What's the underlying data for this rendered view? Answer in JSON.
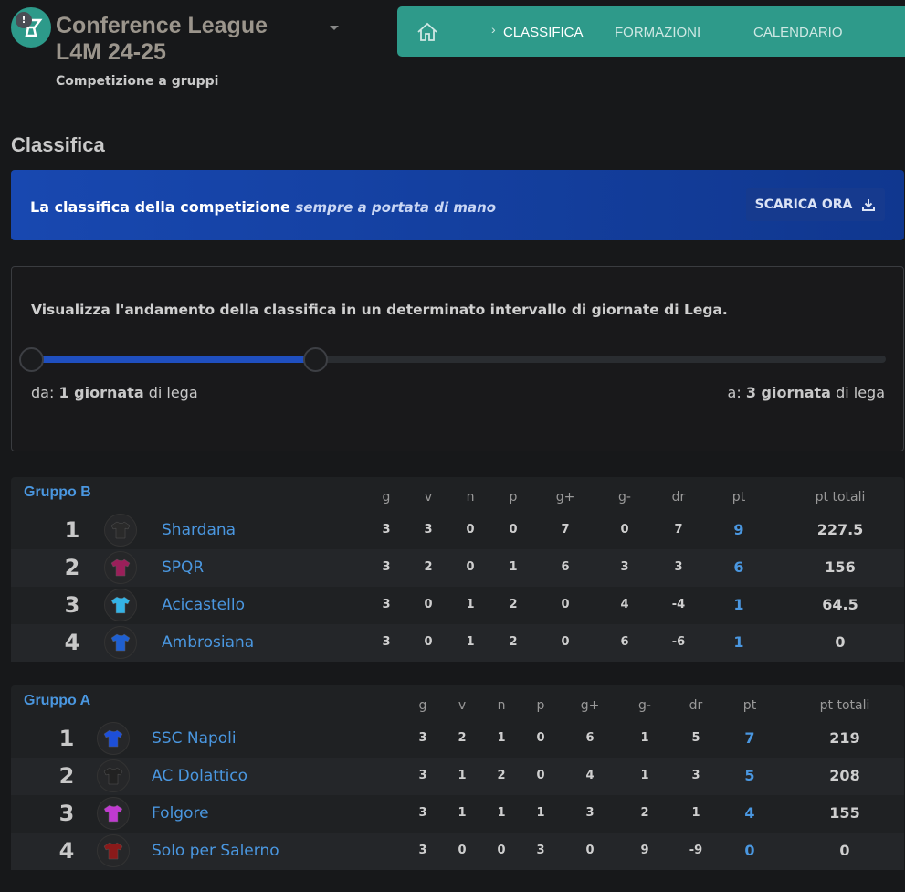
{
  "header": {
    "title_line1": "Conference League",
    "title_line2": "L4M 24-25",
    "subtitle": "Competizione a gruppi",
    "badge": "!",
    "logo_icon": "trophy-icon"
  },
  "nav": {
    "items": [
      "CLASSIFICA",
      "FORMAZIONI",
      "CALENDARIO"
    ],
    "active": "CLASSIFICA",
    "home_icon": "home-icon",
    "color": "#2e9a8a"
  },
  "page_title": "Classifica",
  "banner": {
    "text": "La classifica della competizione",
    "text_em": "sempre a portata di mano",
    "button": "SCARICA ORA",
    "button_icon": "download-icon"
  },
  "range": {
    "description": "Visualizza l'andamento della classifica in un determinato intervallo di giornate di Lega.",
    "from_prefix": "da:",
    "from_value": "1 giornata",
    "from_suffix": "di lega",
    "to_prefix": "a:",
    "to_value": "3 giornata",
    "to_suffix": "di lega",
    "from": 1,
    "to": 3,
    "slider_fraction": [
      0,
      0.33
    ]
  },
  "columns": [
    "g",
    "v",
    "n",
    "p",
    "g+",
    "g-",
    "dr",
    "pt",
    "pt totali"
  ],
  "groups": [
    {
      "name": "Gruppo B",
      "rows": [
        {
          "rank": "1",
          "team": "Shardana",
          "kit": "#2a2a2a",
          "stats": [
            "3",
            "3",
            "0",
            "0",
            "7",
            "0",
            "7"
          ],
          "pt": "9",
          "tot": "227.5"
        },
        {
          "rank": "2",
          "team": "SPQR",
          "kit": "#9b1f5a",
          "stats": [
            "3",
            "2",
            "0",
            "1",
            "6",
            "3",
            "3"
          ],
          "pt": "6",
          "tot": "156"
        },
        {
          "rank": "3",
          "team": "Acicastello",
          "kit": "#34b3e6",
          "stats": [
            "3",
            "0",
            "1",
            "2",
            "0",
            "4",
            "-4"
          ],
          "pt": "1",
          "tot": "64.5"
        },
        {
          "rank": "4",
          "team": "Ambrosiana",
          "kit": "#1f5fd0",
          "stats": [
            "3",
            "0",
            "1",
            "2",
            "0",
            "6",
            "-6"
          ],
          "pt": "1",
          "tot": "0"
        }
      ]
    },
    {
      "name": "Gruppo A",
      "rows": [
        {
          "rank": "1",
          "team": "SSC Napoli",
          "kit": "#1d4fd8",
          "stats": [
            "3",
            "2",
            "1",
            "0",
            "6",
            "1",
            "5"
          ],
          "pt": "7",
          "tot": "219"
        },
        {
          "rank": "2",
          "team": "AC Dolattico",
          "kit": "#222",
          "stats": [
            "3",
            "1",
            "2",
            "0",
            "4",
            "1",
            "3"
          ],
          "pt": "5",
          "tot": "208"
        },
        {
          "rank": "3",
          "team": "Folgore",
          "kit": "#c03ad0",
          "stats": [
            "3",
            "1",
            "1",
            "1",
            "3",
            "2",
            "1"
          ],
          "pt": "4",
          "tot": "155"
        },
        {
          "rank": "4",
          "team": "Solo per Salerno",
          "kit": "#8a1a1a",
          "stats": [
            "3",
            "0",
            "0",
            "3",
            "0",
            "9",
            "-9"
          ],
          "pt": "0",
          "tot": "0"
        }
      ]
    }
  ]
}
